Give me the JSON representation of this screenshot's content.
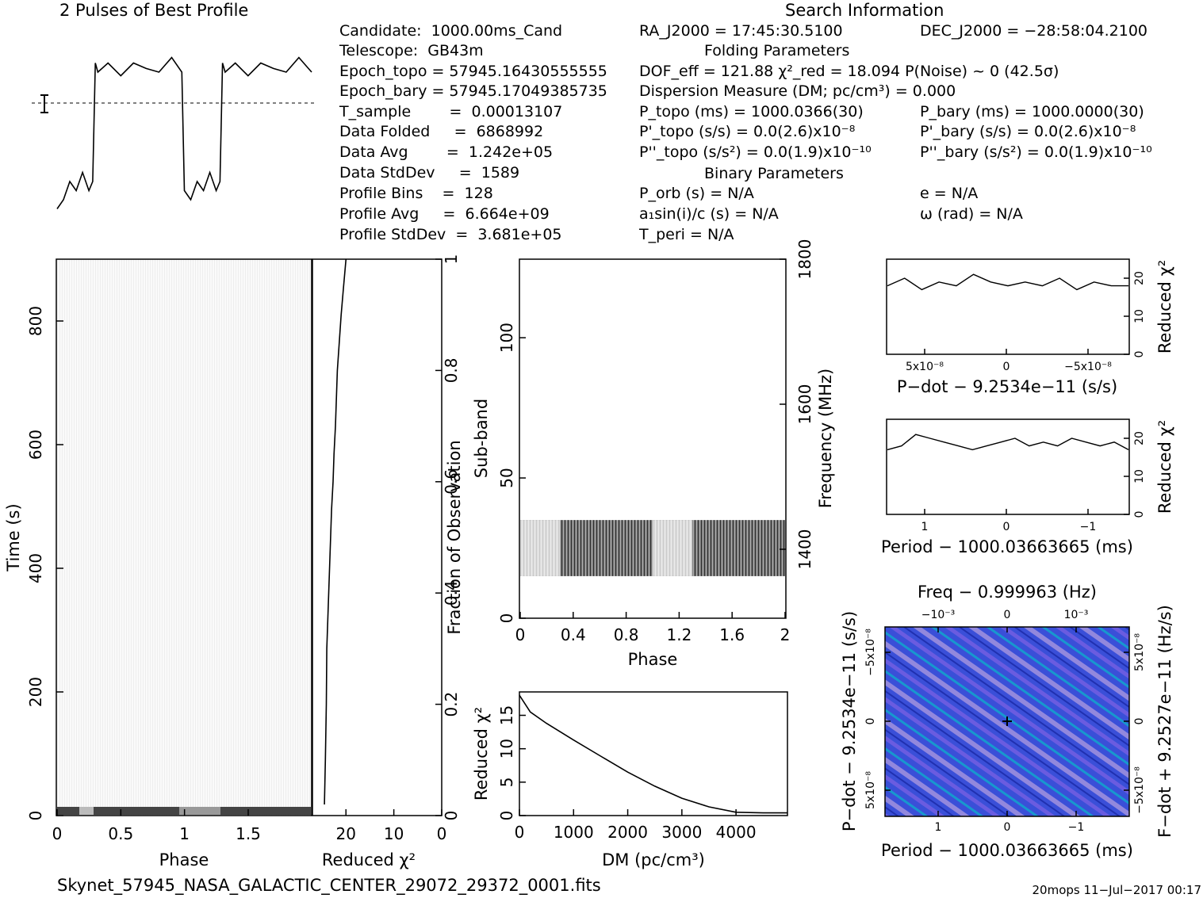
{
  "header": {
    "profile_title": "2 Pulses of Best Profile",
    "search_title": "Search Information",
    "folding_title": "Folding Parameters",
    "binary_title": "Binary Parameters"
  },
  "info_left": [
    "Candidate:  1000.00ms_Cand",
    "Telescope:  GB43m",
    "Epoch_topo = 57945.16430555555",
    "Epoch_bary = 57945.17049385735",
    "T_sample        =  0.00013107",
    "Data Folded     =  6868992",
    "Data Avg        =  1.242e+05",
    "Data StdDev     =  1589",
    "Profile Bins    =  128",
    "Profile Avg     =  6.664e+09",
    "Profile StdDev  =  3.681e+05"
  ],
  "info_mid": [
    "RA_J2000 = 17:45:30.5100",
    "DOF_eff = 121.88  χ²_red = 18.094  P(Noise) ~ 0   (42.5σ)",
    "Dispersion Measure (DM; pc/cm³) = 0.000",
    "P_topo (ms) =  1000.0366(30)",
    "P'_topo (s/s) = 0.0(2.6)x10⁻⁸",
    "P''_topo (s/s²) = 0.0(1.9)x10⁻¹⁰",
    "P_orb (s) = N/A",
    "a₁sin(i)/c (s) = N/A",
    "T_peri = N/A"
  ],
  "info_right": [
    "DEC_J2000 = −28:58:04.2100",
    "P_bary (ms) =  1000.0000(30)",
    "P'_bary (s/s) = 0.0(2.6)x10⁻⁸",
    "P''_bary (s/s²) = 0.0(1.9)x10⁻¹⁰",
    "e = N/A",
    "ω (rad) = N/A"
  ],
  "footer": {
    "filename": "Skynet_57945_NASA_GALACTIC_CENTER_29072_29372_0001.fits",
    "stamp": "20mops  11−Jul−2017 00:17"
  },
  "colors": {
    "ink": "#000000",
    "ppdot_bg": "#3a4fd8",
    "ppdot_hi": "#00d2c8",
    "ppdot_lo": "#b8a0e0"
  },
  "chart_data": [
    {
      "type": "line",
      "title": "2 Pulses of Best Profile",
      "x": [
        0,
        0.05,
        0.1,
        0.15,
        0.2,
        0.25,
        0.28,
        0.3,
        0.32,
        0.4,
        0.5,
        0.6,
        0.7,
        0.8,
        0.9,
        0.98,
        1.0,
        1.05,
        1.1,
        1.15,
        1.2,
        1.25,
        1.28,
        1.3,
        1.32,
        1.4,
        1.5,
        1.6,
        1.7,
        1.8,
        1.9,
        2.0
      ],
      "values": [
        0.05,
        0.1,
        0.2,
        0.15,
        0.25,
        0.15,
        0.2,
        0.85,
        0.8,
        0.85,
        0.78,
        0.85,
        0.82,
        0.8,
        0.88,
        0.8,
        0.15,
        0.1,
        0.2,
        0.15,
        0.25,
        0.15,
        0.2,
        0.85,
        0.8,
        0.85,
        0.78,
        0.85,
        0.82,
        0.8,
        0.88,
        0.8
      ],
      "xlim": [
        0,
        2
      ],
      "grid": false
    },
    {
      "type": "heatmap",
      "xlabel": "Phase",
      "ylabel": "Time (s)",
      "xticks": [
        "0",
        "0.5",
        "1",
        "1.5"
      ],
      "yticks": [
        "0",
        "200",
        "400",
        "600",
        "800"
      ],
      "xlim": [
        0,
        2
      ],
      "ylim": [
        0,
        900
      ]
    },
    {
      "type": "line",
      "xlabel": "Reduced χ²",
      "ylabel": "Fraction of Observation",
      "xticks": [
        "20",
        "10",
        "0"
      ],
      "yticks": [
        "0",
        "0.2",
        "0.4",
        "0.6",
        "0.8",
        "1"
      ],
      "x": [
        20,
        20.5,
        21,
        21.4,
        21.8,
        22,
        22.2,
        22.5,
        22.7,
        23,
        23.2,
        23.4,
        23.6,
        23.8,
        24,
        24.1,
        24.3,
        24.5
      ],
      "y": [
        1.0,
        0.95,
        0.9,
        0.85,
        0.8,
        0.75,
        0.7,
        0.65,
        0.6,
        0.55,
        0.5,
        0.45,
        0.4,
        0.35,
        0.3,
        0.2,
        0.1,
        0.02
      ],
      "xlim": [
        27,
        0
      ],
      "ylim": [
        0,
        1
      ]
    },
    {
      "type": "heatmap",
      "xlabel": "Phase",
      "ylabel": "Sub-band",
      "y2label": "Frequency (MHz)",
      "xticks": [
        "0",
        "0.4",
        "0.8",
        "1.2",
        "1.6",
        "2"
      ],
      "yticks": [
        "0",
        "50",
        "100"
      ],
      "y2ticks": [
        "1400",
        "1600",
        "1800"
      ],
      "xlim": [
        0,
        2
      ],
      "ylim": [
        0,
        128
      ],
      "band_range": [
        15,
        35
      ]
    },
    {
      "type": "line",
      "xlabel": "DM (pc/cm³)",
      "ylabel": "Reduced χ²",
      "xticks": [
        "0",
        "1000",
        "2000",
        "3000",
        "4000"
      ],
      "yticks": [
        "0",
        "5",
        "10",
        "15"
      ],
      "x": [
        0,
        200,
        500,
        1000,
        1500,
        2000,
        2500,
        3000,
        3500,
        4000,
        4500,
        4950
      ],
      "y": [
        18,
        15.5,
        13.8,
        11.3,
        8.9,
        6.5,
        4.4,
        2.6,
        1.3,
        0.5,
        0.4,
        0.4
      ],
      "xlim": [
        0,
        4950
      ],
      "ylim": [
        0,
        18.5
      ]
    },
    {
      "type": "line",
      "xlabel": "P−dot − 9.2534e−11 (s/s)",
      "ylabel": "Reduced χ²",
      "xticks": [
        "5x10⁻⁸",
        "0",
        "−5x10⁻⁸"
      ],
      "yticks": [
        "0",
        "10",
        "20"
      ],
      "x": [
        7,
        6,
        5,
        4,
        3,
        2,
        1,
        0,
        -1,
        -2,
        -3,
        -4,
        -5,
        -6,
        -7
      ],
      "y": [
        18,
        20,
        17,
        19,
        18,
        21,
        19,
        18,
        19,
        18,
        20,
        17,
        19,
        18,
        18
      ],
      "ylim": [
        0,
        25
      ]
    },
    {
      "type": "line",
      "xlabel": "Period − 1000.03663665 (ms)",
      "ylabel": "Reduced χ²",
      "xticks": [
        "1",
        "0",
        "−1"
      ],
      "yticks": [
        "0",
        "10",
        "20"
      ],
      "x": [
        1.7,
        1.5,
        1.3,
        1.1,
        0.9,
        0.7,
        0.5,
        0.3,
        0.1,
        -0.1,
        -0.3,
        -0.5,
        -0.7,
        -0.9,
        -1.1,
        -1.3,
        -1.5,
        -1.7
      ],
      "y": [
        17,
        18,
        21,
        20,
        19,
        18,
        17,
        18,
        19,
        20,
        18,
        19,
        18,
        20,
        19,
        18,
        19,
        17
      ],
      "ylim": [
        0,
        25
      ]
    },
    {
      "type": "heatmap",
      "title": "Freq − 0.999963 (Hz)",
      "xlabel": "Period − 1000.03663665 (ms)",
      "ylabel": "P−dot − 9.2534e−11 (s/s)",
      "y2label": "F−dot + 9.2527e−11 (Hz/s)",
      "xticks": [
        "1",
        "0",
        "−1"
      ],
      "x2ticks": [
        "−10⁻³",
        "0",
        "10⁻³"
      ],
      "yticks": [
        "5x10⁻⁸",
        "0",
        "−5x10⁻⁸"
      ],
      "y2ticks": [
        "−5x10⁻⁸",
        "0",
        "5x10⁻⁸"
      ]
    }
  ]
}
